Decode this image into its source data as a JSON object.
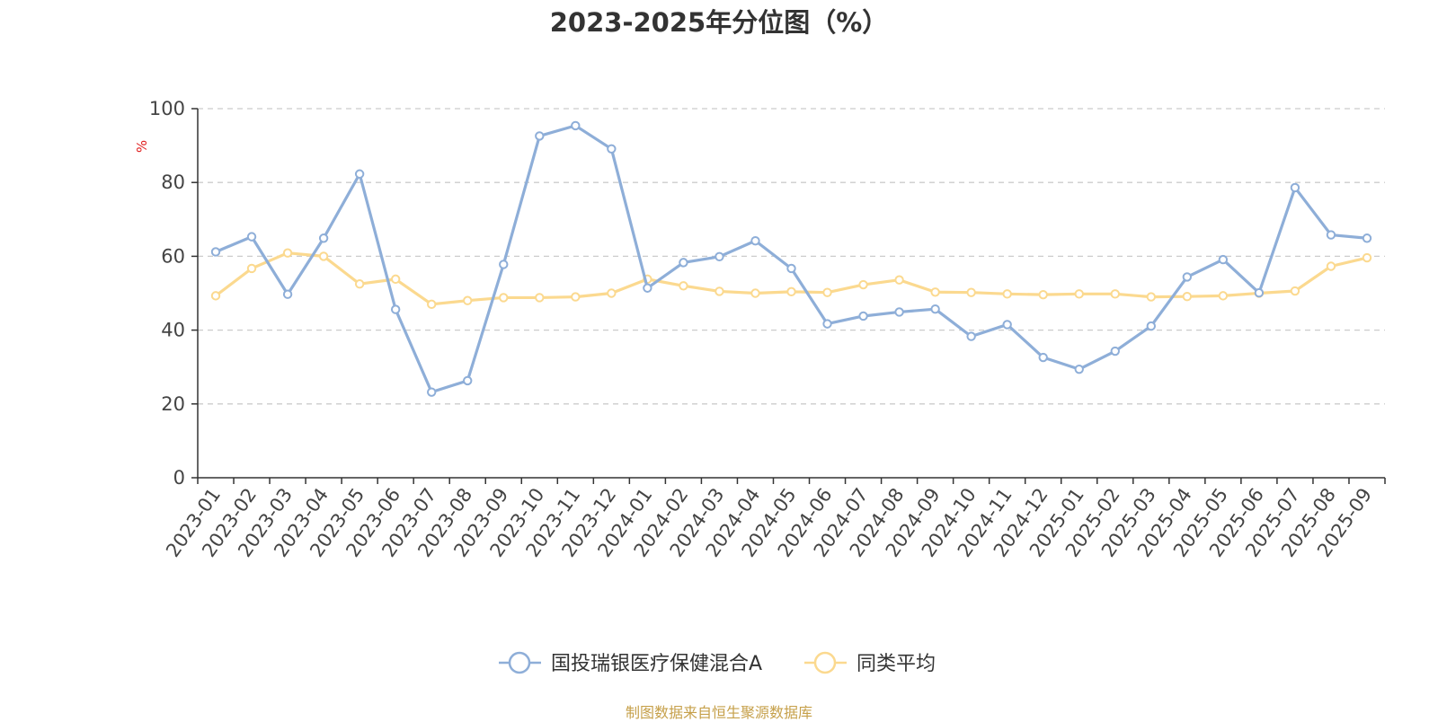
{
  "chart_data": {
    "type": "line",
    "title": "2023-2025年分位图（%）",
    "ylabel": "%",
    "ylim": [
      0,
      100
    ],
    "yticks": [
      0,
      20,
      40,
      60,
      80,
      100
    ],
    "grid": true,
    "legend_position": "bottom",
    "categories": [
      "2023-01",
      "2023-02",
      "2023-03",
      "2023-04",
      "2023-05",
      "2023-06",
      "2023-07",
      "2023-08",
      "2023-09",
      "2023-10",
      "2023-11",
      "2023-12",
      "2024-01",
      "2024-02",
      "2024-03",
      "2024-04",
      "2024-05",
      "2024-06",
      "2024-07",
      "2024-08",
      "2024-09",
      "2024-10",
      "2024-11",
      "2024-12",
      "2025-01",
      "2025-02",
      "2025-03",
      "2025-04",
      "2025-05",
      "2025-06",
      "2025-07",
      "2025-08",
      "2025-09"
    ],
    "series": [
      {
        "name": "国投瑞银医疗保健混合A",
        "color": "#8eaed8",
        "values": [
          61.2,
          65.3,
          49.7,
          64.9,
          82.3,
          45.6,
          23.2,
          26.3,
          57.8,
          92.6,
          95.4,
          89.1,
          51.4,
          58.3,
          59.9,
          64.2,
          56.7,
          41.7,
          43.8,
          44.9,
          45.7,
          38.3,
          41.5,
          32.6,
          29.4,
          34.3,
          41.1,
          54.4,
          59.1,
          50.1,
          78.6,
          65.8,
          64.9
        ]
      },
      {
        "name": "同类平均",
        "color": "#fbd98f",
        "values": [
          49.3,
          56.7,
          60.9,
          60.0,
          52.5,
          53.8,
          47.0,
          48.0,
          48.8,
          48.8,
          49.0,
          50.0,
          53.8,
          52.0,
          50.5,
          50.0,
          50.4,
          50.2,
          52.3,
          53.6,
          50.3,
          50.2,
          49.8,
          49.6,
          49.8,
          49.8,
          49.0,
          49.1,
          49.3,
          50.0,
          50.6,
          57.3,
          59.6
        ]
      }
    ]
  },
  "footer": {
    "source": "制图数据来自恒生聚源数据库"
  }
}
